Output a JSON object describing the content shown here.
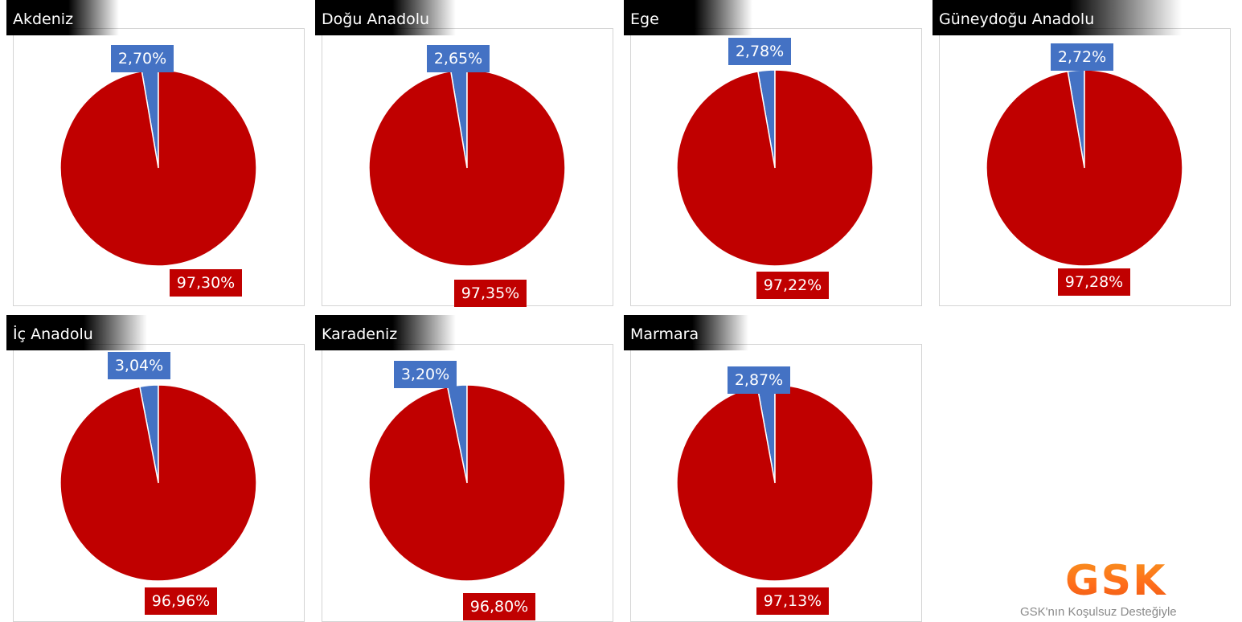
{
  "chart_data": [
    {
      "type": "pie",
      "title": "Akdeniz",
      "values": [
        2.7,
        97.3
      ],
      "labels": [
        "2,70%",
        "97,30%"
      ],
      "colors": [
        "#4472c4",
        "#c00000"
      ]
    },
    {
      "type": "pie",
      "title": "Doğu Anadolu",
      "values": [
        2.65,
        97.35
      ],
      "labels": [
        "2,65%",
        "97,35%"
      ],
      "colors": [
        "#4472c4",
        "#c00000"
      ]
    },
    {
      "type": "pie",
      "title": "Ege",
      "values": [
        2.78,
        97.22
      ],
      "labels": [
        "2,78%",
        "97,22%"
      ],
      "colors": [
        "#4472c4",
        "#c00000"
      ]
    },
    {
      "type": "pie",
      "title": "Güneydoğu Anadolu",
      "values": [
        2.72,
        97.28
      ],
      "labels": [
        "2,72%",
        "97,28%"
      ],
      "colors": [
        "#4472c4",
        "#c00000"
      ]
    },
    {
      "type": "pie",
      "title": "İç Anadolu",
      "values": [
        3.04,
        96.96
      ],
      "labels": [
        "3,04%",
        "96,96%"
      ],
      "colors": [
        "#4472c4",
        "#c00000"
      ]
    },
    {
      "type": "pie",
      "title": "Karadeniz",
      "values": [
        3.2,
        96.8
      ],
      "labels": [
        "3,20%",
        "96,80%"
      ],
      "colors": [
        "#4472c4",
        "#c00000"
      ]
    },
    {
      "type": "pie",
      "title": "Marmara",
      "values": [
        2.87,
        97.13
      ],
      "labels": [
        "2,87%",
        "97,13%"
      ],
      "colors": [
        "#4472c4",
        "#c00000"
      ]
    }
  ],
  "logo": {
    "text": "GSK",
    "caption": "GSK'nın Koşulsuz Desteğiyle"
  }
}
